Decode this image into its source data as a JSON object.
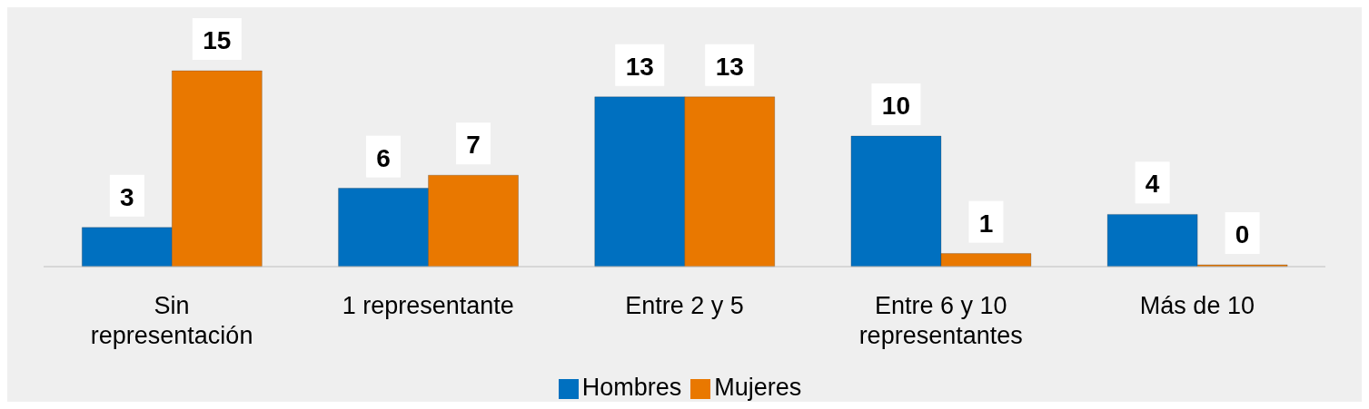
{
  "chart_data": {
    "type": "bar",
    "categories": [
      "Sin representación",
      "1 representante",
      "Entre 2 y 5",
      "Entre 6 y 10 representantes",
      "Más de 10"
    ],
    "series": [
      {
        "name": "Hombres",
        "color": "#0070c0",
        "values": [
          3,
          6,
          13,
          10,
          4
        ]
      },
      {
        "name": "Mujeres",
        "color": "#e97800",
        "values": [
          15,
          7,
          13,
          1,
          0
        ]
      }
    ],
    "data_labels": true,
    "legend": "bottom",
    "grid": false
  }
}
